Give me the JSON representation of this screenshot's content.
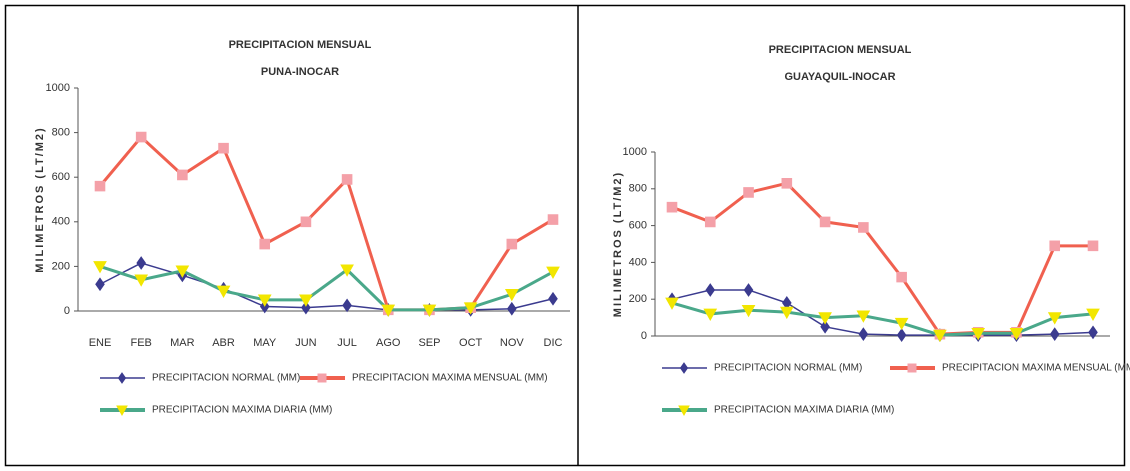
{
  "chart_data": [
    {
      "type": "line",
      "title": "PRECIPITACION MENSUAL",
      "subtitle": "PUNA-INOCAR",
      "y_label": "MILIMETROS (LT/M2)",
      "categories": [
        "ENE",
        "FEB",
        "MAR",
        "ABR",
        "MAY",
        "JUN",
        "JUL",
        "AGO",
        "SEP",
        "OCT",
        "NOV",
        "DIC"
      ],
      "ylim": [
        0,
        1000
      ],
      "yticks": [
        0,
        200,
        400,
        600,
        800,
        1000
      ],
      "series": [
        {
          "name": "PRECIPITACION NORMAL (MM)",
          "color": "#3b3b8f",
          "marker_color": "#3b3b8f",
          "marker": "diamond",
          "values": [
            120,
            215,
            160,
            100,
            20,
            15,
            25,
            5,
            5,
            5,
            10,
            55
          ]
        },
        {
          "name": "PRECIPITACION MAXIMA MENSUAL (MM)",
          "color": "#f0604f",
          "marker_color": "#f4a0a8",
          "marker": "square",
          "values": [
            560,
            780,
            610,
            730,
            300,
            400,
            590,
            5,
            5,
            15,
            300,
            410
          ]
        },
        {
          "name": "PRECIPITACION MAXIMA DIARIA (MM)",
          "color": "#4aa88a",
          "marker_color": "#f2e600",
          "marker": "triangle",
          "values": [
            200,
            140,
            180,
            90,
            50,
            50,
            185,
            5,
            5,
            15,
            75,
            175
          ]
        }
      ]
    },
    {
      "type": "line",
      "title": "PRECIPITACION MENSUAL",
      "subtitle": "GUAYAQUIL-INOCAR",
      "y_label": "MILIMETROS (LT/M2)",
      "categories": [
        null,
        null,
        null,
        null,
        null,
        null,
        null,
        null,
        null,
        null,
        null,
        null
      ],
      "ylim": [
        0,
        1000
      ],
      "yticks": [
        0,
        200,
        400,
        600,
        800,
        1000
      ],
      "series": [
        {
          "name": "PRECIPITACION NORMAL (MM)",
          "color": "#3b3b8f",
          "marker_color": "#3b3b8f",
          "marker": "diamond",
          "values": [
            200,
            250,
            250,
            180,
            50,
            10,
            5,
            5,
            5,
            5,
            10,
            20
          ]
        },
        {
          "name": "PRECIPITACION MAXIMA MENSUAL (MM)",
          "color": "#f0604f",
          "marker_color": "#f4a0a8",
          "marker": "square",
          "values": [
            700,
            620,
            780,
            830,
            620,
            590,
            320,
            10,
            20,
            20,
            490,
            490
          ]
        },
        {
          "name": "PRECIPITACION MAXIMA DIARIA (MM)",
          "color": "#4aa88a",
          "marker_color": "#f2e600",
          "marker": "triangle",
          "values": [
            180,
            120,
            140,
            130,
            100,
            110,
            70,
            5,
            15,
            15,
            100,
            120
          ]
        }
      ]
    }
  ]
}
